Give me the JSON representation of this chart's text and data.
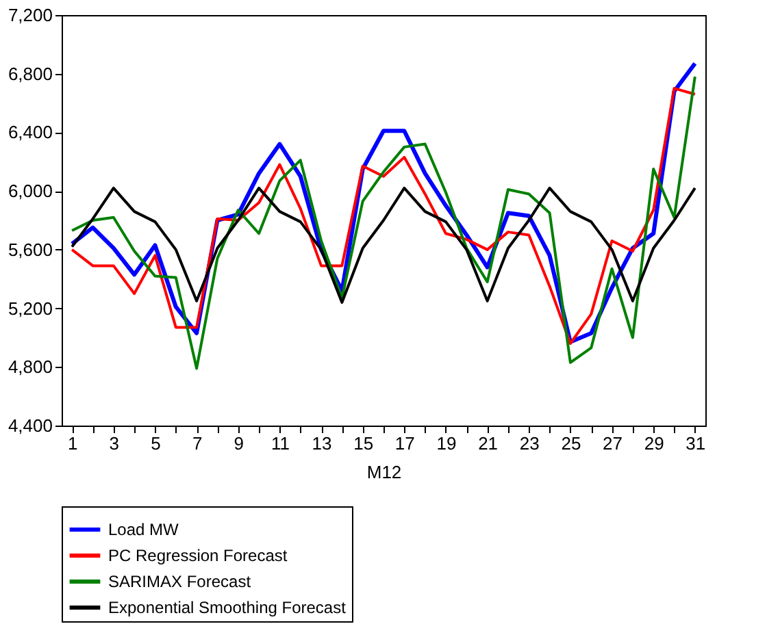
{
  "chart_data": {
    "type": "line",
    "xlabel": "M12",
    "x": [
      1,
      2,
      3,
      4,
      5,
      6,
      7,
      8,
      9,
      10,
      11,
      12,
      13,
      14,
      15,
      16,
      17,
      18,
      19,
      20,
      21,
      22,
      23,
      24,
      25,
      26,
      27,
      28,
      29,
      30,
      31
    ],
    "xlim": [
      0.5,
      31.5
    ],
    "xticks": [
      1,
      {
        "value": 2,
        "label": null
      },
      3,
      {
        "value": 4,
        "label": null
      },
      5,
      {
        "value": 6,
        "label": null
      },
      7,
      {
        "value": 8,
        "label": null
      },
      9,
      {
        "value": 10,
        "label": null
      },
      11,
      {
        "value": 12,
        "label": null
      },
      13,
      {
        "value": 14,
        "label": null
      },
      15,
      {
        "value": 16,
        "label": null
      },
      17,
      {
        "value": 18,
        "label": null
      },
      19,
      {
        "value": 20,
        "label": null
      },
      21,
      {
        "value": 22,
        "label": null
      },
      23,
      {
        "value": 24,
        "label": null
      },
      25,
      {
        "value": 26,
        "label": null
      },
      27,
      {
        "value": 28,
        "label": null
      },
      29,
      {
        "value": 30,
        "label": null
      },
      31
    ],
    "ylim": [
      4400,
      7200
    ],
    "yticks": [
      {
        "value": 4400,
        "label": "4,400"
      },
      {
        "value": 4800,
        "label": "4,800"
      },
      {
        "value": 5200,
        "label": "5,200"
      },
      {
        "value": 5600,
        "label": "5,600"
      },
      {
        "value": 6000,
        "label": "6,000"
      },
      {
        "value": 6400,
        "label": "6,400"
      },
      {
        "value": 6800,
        "label": "6,800"
      },
      {
        "value": 7200,
        "label": "7,200"
      }
    ],
    "grid": false,
    "legend": "bottom",
    "marker": "none",
    "line_style": "solid",
    "series": [
      {
        "name": "Load MW",
        "color": "#0000ff",
        "values": [
          5640,
          5750,
          5610,
          5430,
          5630,
          5210,
          5030,
          5800,
          5840,
          6120,
          6320,
          6100,
          5600,
          5320,
          6150,
          6410,
          6410,
          6120,
          5900,
          5700,
          5480,
          5850,
          5830,
          5560,
          4970,
          5030,
          5340,
          5610,
          5710,
          6680,
          6870
        ]
      },
      {
        "name": "PC Regression Forecast",
        "color": "#ff0000",
        "values": [
          5600,
          5490,
          5490,
          5300,
          5560,
          5070,
          5070,
          5810,
          5800,
          5920,
          6180,
          5880,
          5490,
          5490,
          6170,
          6100,
          6230,
          5980,
          5710,
          5670,
          5600,
          5720,
          5700,
          5350,
          4960,
          5160,
          5660,
          5590,
          5870,
          6700,
          6660
        ]
      },
      {
        "name": "SARIMAX Forecast",
        "color": "#008000",
        "values": [
          5730,
          5800,
          5820,
          5590,
          5420,
          5410,
          4790,
          5540,
          5870,
          5710,
          6070,
          6210,
          5660,
          5270,
          5930,
          6130,
          6300,
          6320,
          5990,
          5610,
          5380,
          6010,
          5980,
          5850,
          4830,
          4930,
          5470,
          5000,
          6150,
          5820,
          6780
        ]
      },
      {
        "name": "Exponential Smoothing Forecast",
        "color": "#000000",
        "values": [
          5620,
          5810,
          6020,
          5860,
          5790,
          5600,
          5250,
          5610,
          5800,
          6020,
          5860,
          5790,
          5600,
          5240,
          5610,
          5800,
          6020,
          5860,
          5790,
          5600,
          5250,
          5610,
          5800,
          6020,
          5860,
          5790,
          5600,
          5250,
          5610,
          5800,
          6020
        ]
      }
    ]
  }
}
